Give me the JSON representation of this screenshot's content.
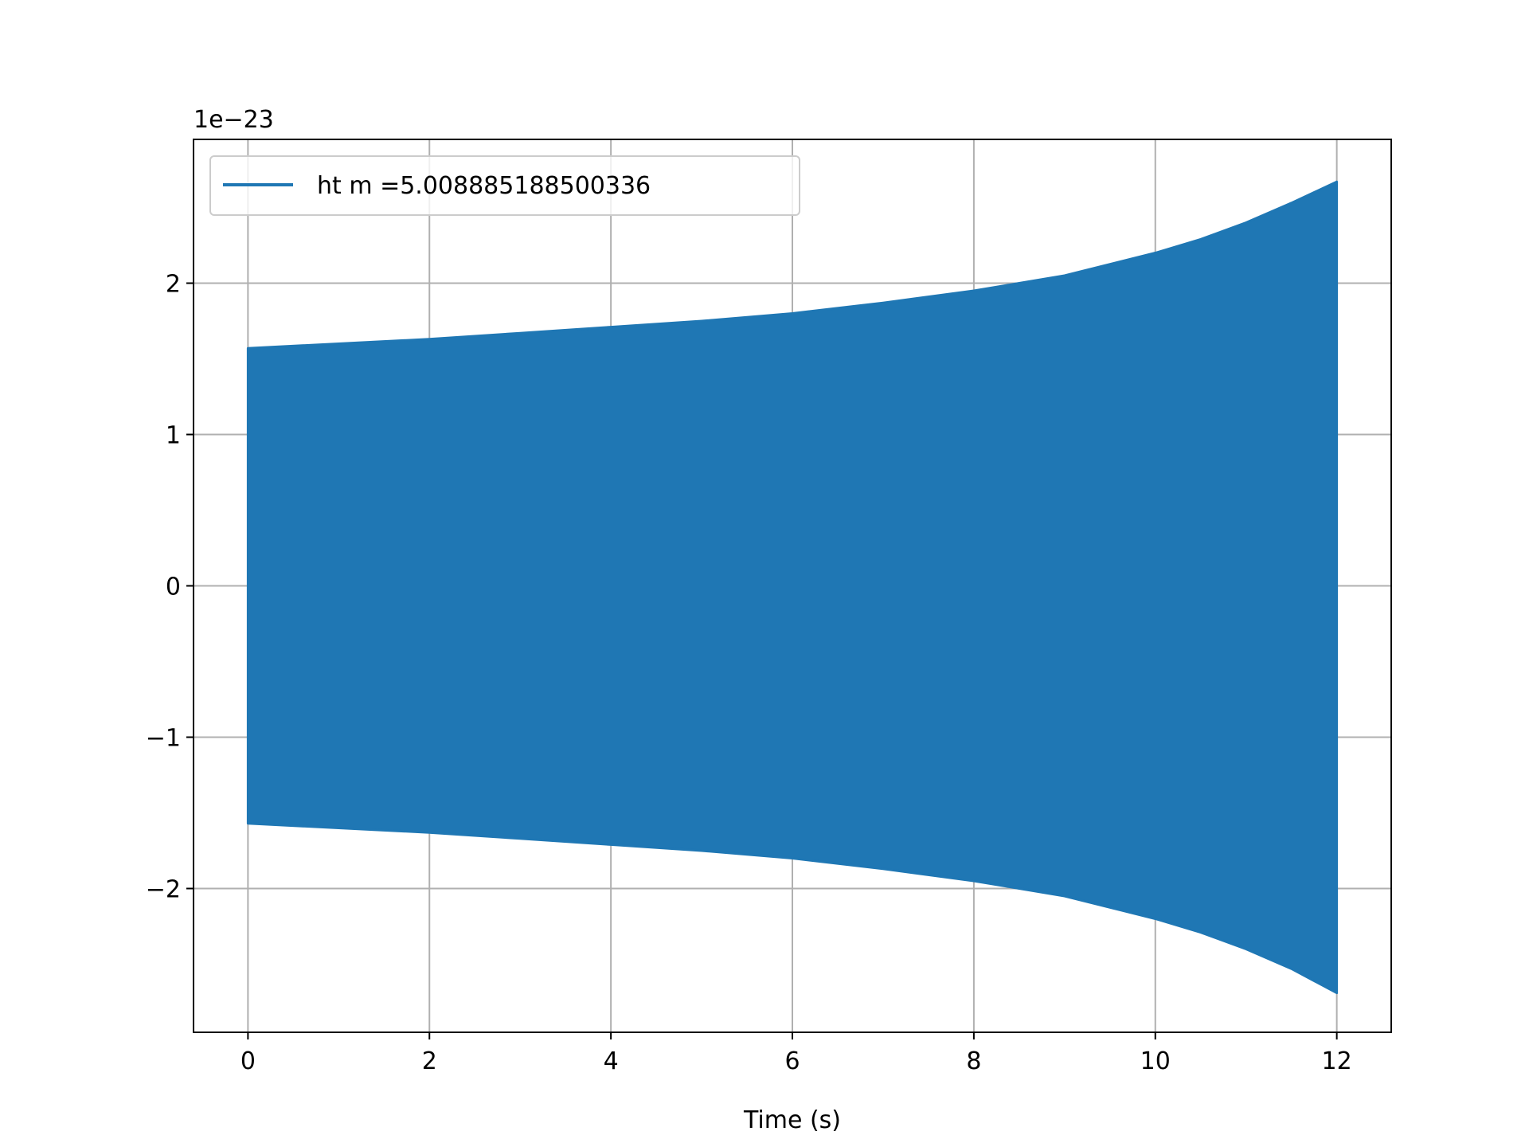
{
  "chart_data": {
    "type": "line",
    "title": "",
    "xlabel": "Time (s)",
    "ylabel": "",
    "y_offset_label": "1e−23",
    "xlim": [
      -0.6,
      12.6
    ],
    "ylim": [
      -2.95,
      2.95
    ],
    "x_ticks": [
      0,
      2,
      4,
      6,
      8,
      10,
      12
    ],
    "x_tick_labels": [
      "0",
      "2",
      "4",
      "6",
      "8",
      "10",
      "12"
    ],
    "y_ticks": [
      -2,
      -1,
      0,
      1,
      2
    ],
    "y_tick_labels": [
      "−2",
      "−1",
      "0",
      "1",
      "2"
    ],
    "grid": true,
    "legend_position": "top-left",
    "series": [
      {
        "name": "ht m =5.008885188500336",
        "color": "#1f77b4",
        "x": [
          0,
          1,
          2,
          3,
          4,
          5,
          6,
          7,
          8,
          9,
          10,
          10.5,
          11,
          11.5,
          12
        ],
        "upper_envelope": [
          1.57,
          1.6,
          1.63,
          1.67,
          1.71,
          1.75,
          1.8,
          1.87,
          1.95,
          2.05,
          2.2,
          2.29,
          2.4,
          2.53,
          2.67
        ],
        "lower_envelope": [
          -1.57,
          -1.6,
          -1.63,
          -1.67,
          -1.71,
          -1.75,
          -1.8,
          -1.87,
          -1.95,
          -2.05,
          -2.2,
          -2.29,
          -2.4,
          -2.53,
          -2.69
        ]
      }
    ]
  }
}
